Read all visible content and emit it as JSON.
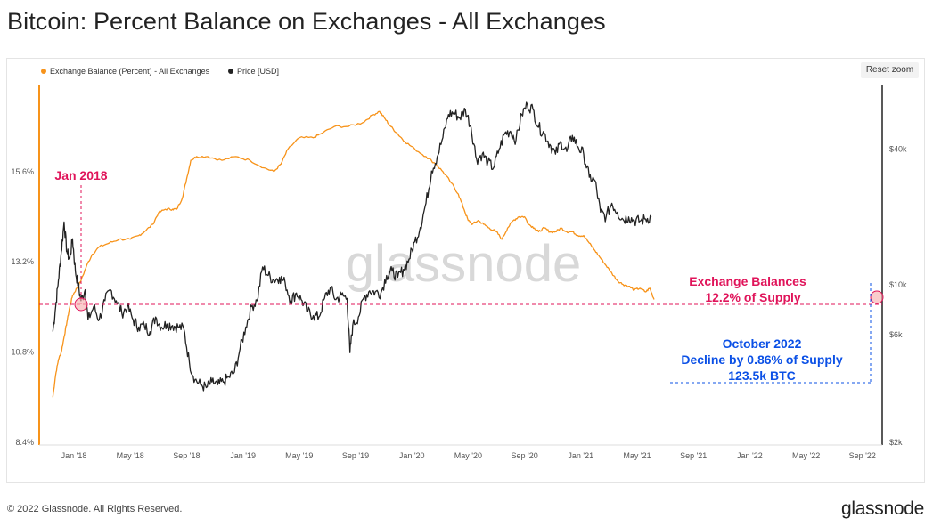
{
  "title": "Bitcoin: Percent Balance on Exchanges - All Exchanges",
  "reset_zoom": "Reset zoom",
  "footer": {
    "copyright": "© 2022 Glassnode. All Rights Reserved.",
    "logo": "glassnode"
  },
  "watermark": "glassnode",
  "colors": {
    "balance": "#f7931a",
    "price": "#222222",
    "annotation_red": "#e0145a",
    "annotation_blue": "#0b50e6"
  },
  "annotations": {
    "jan2018": "Jan 2018",
    "exchange_line1": "Exchange Balances",
    "exchange_line2": "12.2% of Supply",
    "oct_line1": "October 2022",
    "oct_line2": "Decline by 0.86% of Supply",
    "oct_line3": "123.5k BTC"
  },
  "chart_data": {
    "type": "line",
    "title": "Bitcoin: Percent Balance on Exchanges - All Exchanges",
    "legend_placement": "top-left",
    "grid": false,
    "x_ticks": [
      "Jan '18",
      "May '18",
      "Sep '18",
      "Jan '19",
      "May '19",
      "Sep '19",
      "Jan '20",
      "May '20",
      "Sep '20",
      "Jan '21",
      "May '21",
      "Sep '21",
      "Jan '22",
      "May '22",
      "Sep '22"
    ],
    "y_left": {
      "ticks": [
        "8.4%",
        "10.8%",
        "13.2%",
        "15.6%"
      ],
      "range": [
        8.4,
        18.0
      ],
      "unit": "%"
    },
    "y_right": {
      "ticks": [
        "$2k",
        "$6k",
        "$10k",
        "$40k"
      ],
      "scale": "log",
      "unit": "USD"
    },
    "x_range_months": [
      -1.5,
      33.8
    ],
    "series": [
      {
        "name": "Exchange Balance (Percent) - All Exchanges",
        "axis": "left",
        "color": "#f7931a",
        "points": [
          [
            -1.5,
            9.6
          ],
          [
            -1.3,
            10.2
          ],
          [
            -1.1,
            10.6
          ],
          [
            -0.9,
            10.8
          ],
          [
            -0.7,
            11.2
          ],
          [
            -0.5,
            11.6
          ],
          [
            -0.3,
            12.0
          ],
          [
            -0.1,
            12.3
          ],
          [
            0.2,
            12.5
          ],
          [
            0.5,
            12.7
          ],
          [
            0.9,
            13.1
          ],
          [
            1.3,
            13.4
          ],
          [
            1.8,
            13.6
          ],
          [
            2.5,
            13.7
          ],
          [
            3.2,
            13.8
          ],
          [
            4.0,
            13.8
          ],
          [
            4.6,
            13.9
          ],
          [
            5.0,
            14.0
          ],
          [
            5.6,
            14.2
          ],
          [
            6.0,
            14.5
          ],
          [
            6.5,
            14.6
          ],
          [
            7.0,
            14.6
          ],
          [
            7.3,
            14.6
          ],
          [
            7.7,
            14.9
          ],
          [
            8.0,
            15.4
          ],
          [
            8.3,
            15.9
          ],
          [
            8.7,
            16.0
          ],
          [
            9.5,
            16.0
          ],
          [
            10.5,
            15.9
          ],
          [
            11.5,
            16.0
          ],
          [
            12.5,
            15.9
          ],
          [
            13.5,
            15.7
          ],
          [
            14.2,
            15.6
          ],
          [
            14.7,
            15.8
          ],
          [
            15.2,
            16.2
          ],
          [
            16.0,
            16.5
          ],
          [
            17.0,
            16.5
          ],
          [
            17.5,
            16.6
          ],
          [
            18.5,
            16.8
          ],
          [
            19.5,
            16.8
          ],
          [
            20.5,
            16.9
          ],
          [
            21.2,
            17.1
          ],
          [
            21.7,
            17.2
          ],
          [
            22.1,
            17.0
          ],
          [
            22.5,
            16.8
          ],
          [
            23.0,
            16.6
          ],
          [
            23.5,
            16.4
          ],
          [
            24.2,
            16.2
          ],
          [
            25.0,
            16.0
          ],
          [
            25.7,
            15.8
          ],
          [
            26.2,
            15.6
          ],
          [
            26.8,
            15.3
          ],
          [
            27.3,
            15.0
          ],
          [
            27.7,
            14.6
          ],
          [
            28.0,
            14.3
          ],
          [
            28.3,
            14.2
          ],
          [
            28.7,
            14.3
          ],
          [
            29.1,
            14.2
          ],
          [
            29.5,
            14.1
          ],
          [
            30.0,
            14.0
          ],
          [
            30.4,
            13.8
          ],
          [
            30.8,
            14.1
          ],
          [
            31.2,
            14.3
          ],
          [
            31.6,
            14.4
          ],
          [
            32.0,
            14.4
          ],
          [
            32.3,
            14.2
          ],
          [
            32.7,
            14.1
          ],
          [
            33.0,
            14.0
          ],
          [
            33.4,
            14.1
          ],
          [
            33.8,
            14.0
          ],
          [
            34.2,
            14.0
          ],
          [
            34.6,
            14.1
          ],
          [
            35.0,
            14.0
          ],
          [
            35.4,
            14.0
          ],
          [
            35.8,
            13.9
          ],
          [
            36.2,
            13.9
          ],
          [
            36.6,
            13.7
          ],
          [
            37.0,
            13.5
          ],
          [
            37.4,
            13.3
          ],
          [
            37.8,
            13.1
          ],
          [
            38.2,
            12.9
          ],
          [
            38.6,
            12.7
          ],
          [
            39.0,
            12.6
          ],
          [
            39.4,
            12.55
          ],
          [
            39.8,
            12.45
          ],
          [
            40.2,
            12.5
          ],
          [
            40.6,
            12.4
          ],
          [
            40.9,
            12.5
          ],
          [
            41.2,
            12.2
          ]
        ]
      },
      {
        "name": "Price [USD]",
        "axis": "right",
        "color": "#222222",
        "points": [
          [
            -1.5,
            6200
          ],
          [
            -1.3,
            8000
          ],
          [
            -1.1,
            10500
          ],
          [
            -0.9,
            14000
          ],
          [
            -0.7,
            19000
          ],
          [
            -0.5,
            14000
          ],
          [
            -0.3,
            13000
          ],
          [
            -0.1,
            16000
          ],
          [
            0.1,
            11500
          ],
          [
            0.3,
            10000
          ],
          [
            0.5,
            8500
          ],
          [
            0.8,
            9500
          ],
          [
            1.0,
            7000
          ],
          [
            1.4,
            8000
          ],
          [
            1.8,
            7000
          ],
          [
            2.2,
            8500
          ],
          [
            2.6,
            9500
          ],
          [
            3.0,
            8500
          ],
          [
            3.4,
            7500
          ],
          [
            3.8,
            8000
          ],
          [
            4.2,
            7000
          ],
          [
            4.6,
            6500
          ],
          [
            5.0,
            6600
          ],
          [
            5.4,
            6200
          ],
          [
            5.8,
            7200
          ],
          [
            6.2,
            6500
          ],
          [
            6.6,
            6700
          ],
          [
            7.0,
            6600
          ],
          [
            7.4,
            6500
          ],
          [
            7.8,
            6400
          ],
          [
            8.2,
            4500
          ],
          [
            8.6,
            3800
          ],
          [
            9.0,
            3600
          ],
          [
            9.4,
            3500
          ],
          [
            9.8,
            3700
          ],
          [
            10.2,
            3600
          ],
          [
            10.6,
            3700
          ],
          [
            11.0,
            3900
          ],
          [
            11.4,
            4100
          ],
          [
            11.8,
            5200
          ],
          [
            12.2,
            6500
          ],
          [
            12.6,
            8000
          ],
          [
            13.0,
            8500
          ],
          [
            13.4,
            12000
          ],
          [
            13.8,
            11000
          ],
          [
            14.2,
            10500
          ],
          [
            14.6,
            10800
          ],
          [
            15.0,
            10200
          ],
          [
            15.4,
            8500
          ],
          [
            15.8,
            9200
          ],
          [
            16.2,
            8500
          ],
          [
            16.6,
            7600
          ],
          [
            17.0,
            7300
          ],
          [
            17.4,
            7200
          ],
          [
            17.8,
            8700
          ],
          [
            18.2,
            9700
          ],
          [
            18.6,
            8600
          ],
          [
            19.0,
            9000
          ],
          [
            19.4,
            8700
          ],
          [
            19.6,
            5000
          ],
          [
            19.8,
            6600
          ],
          [
            20.2,
            7200
          ],
          [
            20.6,
            8800
          ],
          [
            21.0,
            9400
          ],
          [
            21.4,
            9300
          ],
          [
            21.8,
            9200
          ],
          [
            22.2,
            11000
          ],
          [
            22.6,
            11500
          ],
          [
            23.0,
            10800
          ],
          [
            23.4,
            11700
          ],
          [
            23.8,
            13000
          ],
          [
            24.2,
            15500
          ],
          [
            24.6,
            18000
          ],
          [
            25.0,
            23000
          ],
          [
            25.4,
            32000
          ],
          [
            25.8,
            37000
          ],
          [
            26.2,
            45000
          ],
          [
            26.6,
            57000
          ],
          [
            27.0,
            58000
          ],
          [
            27.4,
            55000
          ],
          [
            27.8,
            60000
          ],
          [
            28.2,
            50000
          ],
          [
            28.6,
            36000
          ],
          [
            29.0,
            38000
          ],
          [
            29.4,
            35000
          ],
          [
            29.8,
            33000
          ],
          [
            30.2,
            40000
          ],
          [
            30.6,
            47000
          ],
          [
            31.0,
            48000
          ],
          [
            31.4,
            44000
          ],
          [
            31.8,
            57000
          ],
          [
            32.2,
            63000
          ],
          [
            32.6,
            60000
          ],
          [
            33.0,
            50000
          ],
          [
            33.4,
            47000
          ],
          [
            33.8,
            42000
          ],
          [
            34.2,
            38000
          ],
          [
            34.6,
            43000
          ],
          [
            35.0,
            39000
          ],
          [
            35.4,
            46000
          ],
          [
            35.8,
            41000
          ],
          [
            36.2,
            38000
          ],
          [
            36.6,
            30000
          ],
          [
            37.0,
            29000
          ],
          [
            37.4,
            21000
          ],
          [
            37.8,
            20000
          ],
          [
            38.2,
            23000
          ],
          [
            38.6,
            21000
          ],
          [
            39.0,
            19500
          ],
          [
            39.4,
            20000
          ],
          [
            39.8,
            19300
          ],
          [
            40.2,
            19200
          ],
          [
            40.6,
            19600
          ],
          [
            41.0,
            20000
          ]
        ]
      }
    ]
  }
}
